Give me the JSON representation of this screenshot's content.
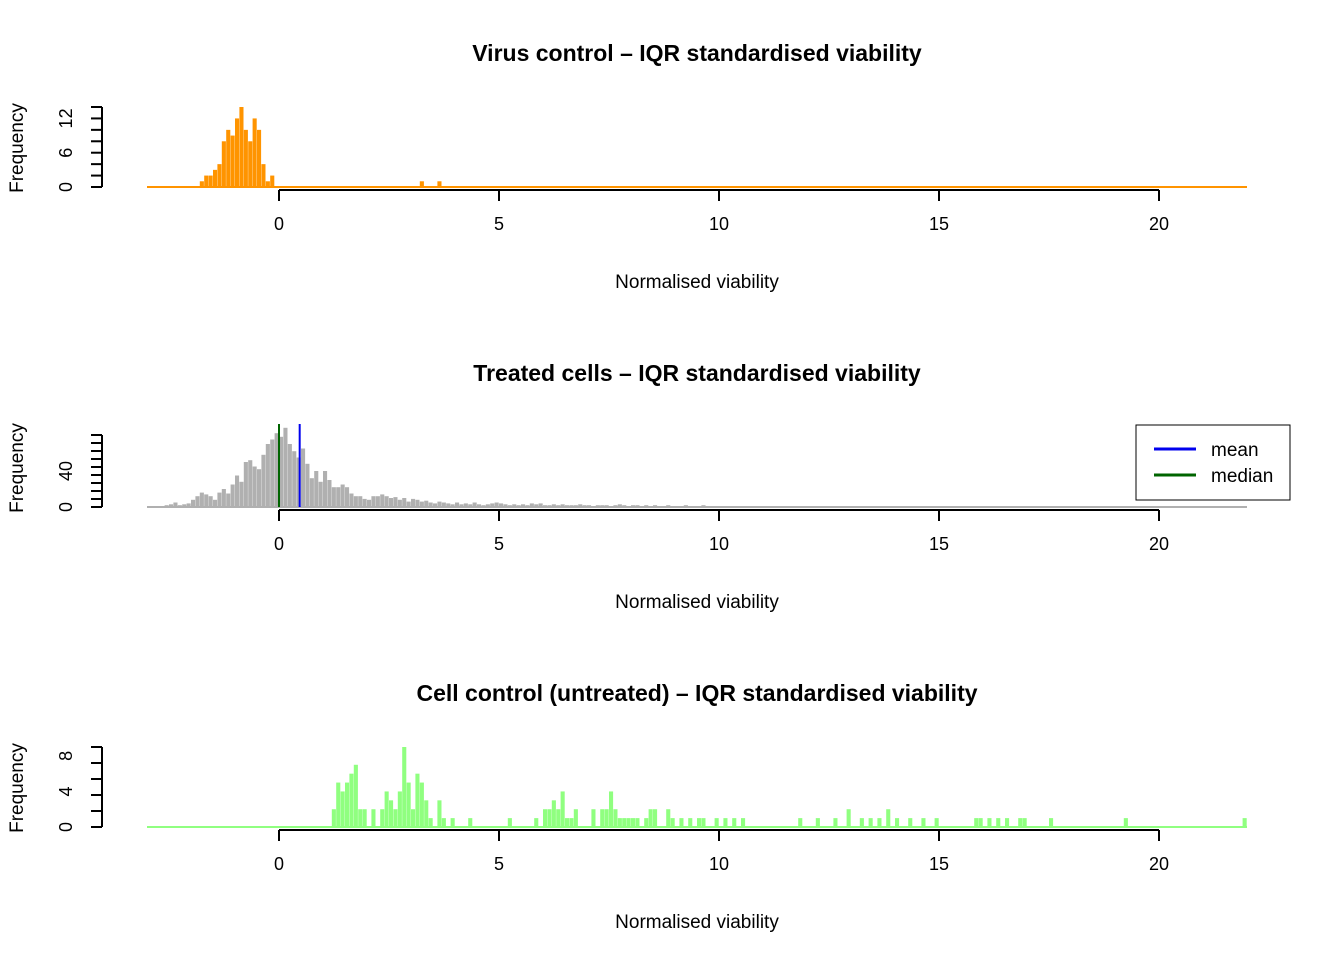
{
  "chart_data": [
    {
      "type": "bar",
      "title": "Virus control – IQR standardised viability",
      "xlabel": "Normalised viability",
      "ylabel": "Frequency",
      "xlim": [
        -3,
        22
      ],
      "ylim": [
        0,
        14
      ],
      "x_ticks": [
        "0",
        "5",
        "10",
        "15",
        "20"
      ],
      "y_ticks": [
        "0",
        "6",
        "12"
      ],
      "color": "#FF9400",
      "bin_width": 0.1,
      "bins": [
        [
          -1.8,
          1
        ],
        [
          -1.7,
          2
        ],
        [
          -1.6,
          2
        ],
        [
          -1.5,
          3
        ],
        [
          -1.4,
          4
        ],
        [
          -1.3,
          8
        ],
        [
          -1.2,
          10
        ],
        [
          -1.1,
          9
        ],
        [
          -1.0,
          12
        ],
        [
          -0.9,
          14
        ],
        [
          -0.8,
          10
        ],
        [
          -0.7,
          8
        ],
        [
          -0.6,
          12
        ],
        [
          -0.5,
          10
        ],
        [
          -0.4,
          4
        ],
        [
          -0.3,
          1
        ],
        [
          -0.2,
          2
        ],
        [
          3.2,
          1
        ],
        [
          3.6,
          1
        ]
      ],
      "legend": []
    },
    {
      "type": "bar",
      "title": "Treated cells – IQR standardised viability",
      "xlabel": "Normalised viability",
      "ylabel": "Frequency",
      "xlim": [
        -3,
        22
      ],
      "ylim": [
        0,
        80
      ],
      "x_ticks": [
        "0",
        "5",
        "10",
        "15",
        "20"
      ],
      "y_ticks": [
        "0",
        "40"
      ],
      "color": "#B0B0B0",
      "bin_width": 0.1,
      "bins": [
        [
          -2.6,
          2
        ],
        [
          -2.5,
          3
        ],
        [
          -2.4,
          5
        ],
        [
          -2.3,
          2
        ],
        [
          -2.2,
          3
        ],
        [
          -2.1,
          4
        ],
        [
          -2.0,
          8
        ],
        [
          -1.9,
          12
        ],
        [
          -1.8,
          16
        ],
        [
          -1.7,
          14
        ],
        [
          -1.6,
          12
        ],
        [
          -1.5,
          8
        ],
        [
          -1.4,
          16
        ],
        [
          -1.3,
          20
        ],
        [
          -1.2,
          15
        ],
        [
          -1.1,
          25
        ],
        [
          -1.0,
          35
        ],
        [
          -0.9,
          28
        ],
        [
          -0.8,
          50
        ],
        [
          -0.7,
          52
        ],
        [
          -0.6,
          45
        ],
        [
          -0.5,
          42
        ],
        [
          -0.4,
          58
        ],
        [
          -0.3,
          70
        ],
        [
          -0.2,
          75
        ],
        [
          -0.1,
          82
        ],
        [
          0.0,
          78
        ],
        [
          0.1,
          88
        ],
        [
          0.2,
          70
        ],
        [
          0.3,
          62
        ],
        [
          0.4,
          55
        ],
        [
          0.5,
          65
        ],
        [
          0.6,
          48
        ],
        [
          0.7,
          32
        ],
        [
          0.8,
          40
        ],
        [
          0.9,
          28
        ],
        [
          1.0,
          40
        ],
        [
          1.1,
          30
        ],
        [
          1.2,
          22
        ],
        [
          1.3,
          22
        ],
        [
          1.4,
          25
        ],
        [
          1.5,
          22
        ],
        [
          1.6,
          15
        ],
        [
          1.7,
          12
        ],
        [
          1.8,
          12
        ],
        [
          1.9,
          9
        ],
        [
          2.0,
          8
        ],
        [
          2.1,
          12
        ],
        [
          2.2,
          12
        ],
        [
          2.3,
          14
        ],
        [
          2.4,
          12
        ],
        [
          2.5,
          10
        ],
        [
          2.6,
          11
        ],
        [
          2.7,
          8
        ],
        [
          2.8,
          10
        ],
        [
          2.9,
          6
        ],
        [
          3.0,
          9
        ],
        [
          3.1,
          8
        ],
        [
          3.2,
          6
        ],
        [
          3.3,
          7
        ],
        [
          3.4,
          5
        ],
        [
          3.5,
          4
        ],
        [
          3.6,
          6
        ],
        [
          3.7,
          5
        ],
        [
          3.8,
          4
        ],
        [
          3.9,
          3
        ],
        [
          4.0,
          5
        ],
        [
          4.1,
          3
        ],
        [
          4.2,
          4
        ],
        [
          4.3,
          3
        ],
        [
          4.4,
          5
        ],
        [
          4.5,
          3
        ],
        [
          4.6,
          2
        ],
        [
          4.7,
          3
        ],
        [
          4.8,
          4
        ],
        [
          4.9,
          5
        ],
        [
          5.0,
          4
        ],
        [
          5.1,
          3
        ],
        [
          5.2,
          2
        ],
        [
          5.3,
          3
        ],
        [
          5.4,
          2
        ],
        [
          5.5,
          3
        ],
        [
          5.6,
          2
        ],
        [
          5.7,
          4
        ],
        [
          5.8,
          3
        ],
        [
          5.9,
          4
        ],
        [
          6.0,
          2
        ],
        [
          6.1,
          2
        ],
        [
          6.2,
          3
        ],
        [
          6.3,
          2
        ],
        [
          6.4,
          3
        ],
        [
          6.5,
          2
        ],
        [
          6.6,
          2
        ],
        [
          6.7,
          2
        ],
        [
          6.8,
          3
        ],
        [
          6.9,
          2
        ],
        [
          7.0,
          2
        ],
        [
          7.1,
          1
        ],
        [
          7.2,
          2
        ],
        [
          7.3,
          2
        ],
        [
          7.4,
          2
        ],
        [
          7.5,
          1
        ],
        [
          7.6,
          2
        ],
        [
          7.7,
          3
        ],
        [
          7.8,
          2
        ],
        [
          7.9,
          1
        ],
        [
          8.0,
          2
        ],
        [
          8.1,
          2
        ],
        [
          8.2,
          1
        ],
        [
          8.3,
          2
        ],
        [
          8.4,
          1
        ],
        [
          8.5,
          2
        ],
        [
          8.6,
          1
        ],
        [
          8.7,
          1
        ],
        [
          8.8,
          2
        ],
        [
          8.9,
          1
        ],
        [
          9.0,
          1
        ],
        [
          9.2,
          2
        ],
        [
          9.3,
          1
        ],
        [
          9.5,
          1
        ],
        [
          9.6,
          2
        ],
        [
          9.8,
          1
        ],
        [
          9.9,
          1
        ],
        [
          10.1,
          1
        ],
        [
          10.3,
          1
        ],
        [
          10.5,
          1
        ],
        [
          10.7,
          1
        ],
        [
          10.9,
          1
        ],
        [
          11.1,
          1
        ],
        [
          11.3,
          1
        ],
        [
          11.6,
          1
        ],
        [
          11.9,
          1
        ],
        [
          12.2,
          1
        ],
        [
          12.5,
          1
        ],
        [
          12.8,
          1
        ],
        [
          13.1,
          1
        ],
        [
          13.5,
          1
        ],
        [
          13.9,
          1
        ],
        [
          14.3,
          1
        ],
        [
          14.8,
          1
        ],
        [
          15.2,
          1
        ],
        [
          15.7,
          1
        ],
        [
          16.3,
          1
        ],
        [
          16.9,
          1
        ],
        [
          17.6,
          1
        ],
        [
          18.4,
          1
        ],
        [
          19.3,
          1
        ]
      ],
      "reference_lines": [
        {
          "name": "mean",
          "x": 0.47,
          "color": "#0000EE"
        },
        {
          "name": "median",
          "x": 0.0,
          "color": "#006400"
        }
      ],
      "legend": [
        {
          "label": "mean",
          "color": "#0000EE"
        },
        {
          "label": "median",
          "color": "#006400"
        }
      ],
      "legend_position": "top-right"
    },
    {
      "type": "bar",
      "title": "Cell control (untreated) – IQR standardised viability",
      "xlabel": "Normalised viability",
      "ylabel": "Frequency",
      "xlim": [
        -3,
        22
      ],
      "ylim": [
        0,
        9
      ],
      "x_ticks": [
        "0",
        "5",
        "10",
        "15",
        "20"
      ],
      "y_ticks": [
        "0",
        "4",
        "8"
      ],
      "color": "#90FF80",
      "bin_width": 0.1,
      "bins": [
        [
          1.2,
          2
        ],
        [
          1.3,
          5
        ],
        [
          1.4,
          4
        ],
        [
          1.5,
          5
        ],
        [
          1.6,
          6
        ],
        [
          1.7,
          7
        ],
        [
          1.8,
          2
        ],
        [
          1.9,
          2
        ],
        [
          2.1,
          2
        ],
        [
          2.3,
          2
        ],
        [
          2.4,
          4
        ],
        [
          2.5,
          3
        ],
        [
          2.6,
          2
        ],
        [
          2.7,
          4
        ],
        [
          2.8,
          9
        ],
        [
          2.9,
          5
        ],
        [
          3.0,
          2
        ],
        [
          3.1,
          6
        ],
        [
          3.2,
          5
        ],
        [
          3.3,
          3
        ],
        [
          3.4,
          1
        ],
        [
          3.6,
          3
        ],
        [
          3.7,
          1
        ],
        [
          3.9,
          1
        ],
        [
          4.3,
          1
        ],
        [
          5.2,
          1
        ],
        [
          5.8,
          1
        ],
        [
          6.0,
          2
        ],
        [
          6.1,
          2
        ],
        [
          6.2,
          3
        ],
        [
          6.3,
          2
        ],
        [
          6.4,
          4
        ],
        [
          6.5,
          1
        ],
        [
          6.6,
          1
        ],
        [
          6.7,
          2
        ],
        [
          7.1,
          2
        ],
        [
          7.3,
          2
        ],
        [
          7.4,
          2
        ],
        [
          7.5,
          4
        ],
        [
          7.6,
          2
        ],
        [
          7.7,
          1
        ],
        [
          7.8,
          1
        ],
        [
          7.9,
          1
        ],
        [
          8.0,
          1
        ],
        [
          8.1,
          1
        ],
        [
          8.3,
          1
        ],
        [
          8.4,
          2
        ],
        [
          8.5,
          2
        ],
        [
          8.8,
          2
        ],
        [
          8.9,
          1
        ],
        [
          9.1,
          1
        ],
        [
          9.3,
          1
        ],
        [
          9.5,
          1
        ],
        [
          9.6,
          1
        ],
        [
          9.9,
          1
        ],
        [
          10.1,
          1
        ],
        [
          10.3,
          1
        ],
        [
          10.5,
          1
        ],
        [
          11.8,
          1
        ],
        [
          12.2,
          1
        ],
        [
          12.6,
          1
        ],
        [
          12.9,
          2
        ],
        [
          13.2,
          1
        ],
        [
          13.4,
          1
        ],
        [
          13.6,
          1
        ],
        [
          13.8,
          2
        ],
        [
          14.0,
          1
        ],
        [
          14.3,
          1
        ],
        [
          14.6,
          1
        ],
        [
          14.9,
          1
        ],
        [
          15.8,
          1
        ],
        [
          15.9,
          1
        ],
        [
          16.1,
          1
        ],
        [
          16.3,
          1
        ],
        [
          16.5,
          1
        ],
        [
          16.8,
          1
        ],
        [
          16.9,
          1
        ],
        [
          17.5,
          1
        ],
        [
          19.2,
          1
        ],
        [
          21.9,
          1
        ]
      ],
      "legend": []
    }
  ]
}
